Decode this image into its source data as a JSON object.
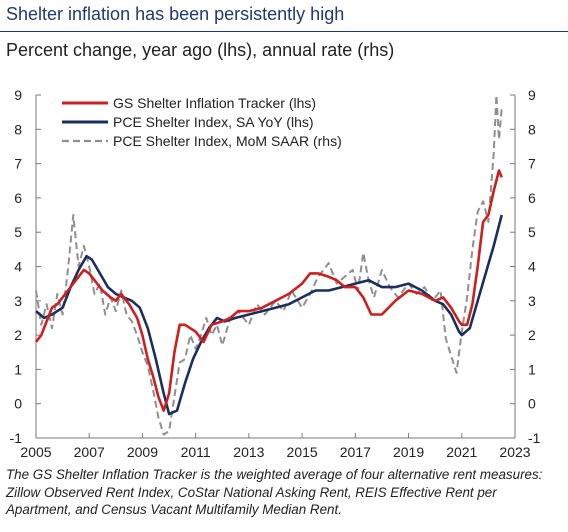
{
  "header": {
    "title": "Shelter inflation has been persistently high",
    "subtitle": "Percent change, year ago (lhs), annual rate (rhs)"
  },
  "footnote": "The GS Shelter Inflation Tracker is the weighted average of four alternative rent measures: Zillow Observed Rent Index, CoStar National Asking Rent, REIS Effective Rent per Apartment, and Census Vacant Multifamily Median Rent.",
  "colors": {
    "gs_tracker": "#cc1f1f",
    "pce_yoy": "#1b2f5e",
    "pce_mom": "#8f8f8f"
  },
  "chart_data": {
    "type": "line",
    "title": "Shelter inflation has been persistently high",
    "subtitle": "Percent change, year ago (lhs), annual rate (rhs)",
    "xlim": [
      2005,
      2023
    ],
    "ylim_left": [
      -1,
      9
    ],
    "ylim_right": [
      -1,
      9
    ],
    "x_ticks": [
      2005,
      2007,
      2009,
      2011,
      2013,
      2015,
      2017,
      2019,
      2021,
      2023
    ],
    "y_ticks_left": [
      -1,
      0,
      1,
      2,
      3,
      4,
      5,
      6,
      7,
      8,
      9
    ],
    "y_ticks_right": [
      -1,
      0,
      1,
      2,
      3,
      4,
      5,
      6,
      7,
      8,
      9
    ],
    "legend_position": "top-left",
    "grid": false,
    "series": [
      {
        "name": "GS Shelter Inflation Tracker (lhs)",
        "axis": "left",
        "style": "solid",
        "x": [
          2005.0,
          2005.2,
          2005.4,
          2005.6,
          2005.8,
          2006.0,
          2006.2,
          2006.5,
          2006.8,
          2007.0,
          2007.2,
          2007.5,
          2007.8,
          2008.0,
          2008.2,
          2008.5,
          2008.8,
          2009.0,
          2009.2,
          2009.4,
          2009.6,
          2009.8,
          2010.0,
          2010.2,
          2010.4,
          2010.6,
          2010.8,
          2011.0,
          2011.3,
          2011.6,
          2012.0,
          2012.3,
          2012.6,
          2013.0,
          2013.5,
          2014.0,
          2014.5,
          2015.0,
          2015.3,
          2015.6,
          2016.0,
          2016.3,
          2016.6,
          2017.0,
          2017.3,
          2017.6,
          2018.0,
          2018.5,
          2019.0,
          2019.5,
          2020.0,
          2020.3,
          2020.6,
          2020.9,
          2021.0,
          2021.2,
          2021.4,
          2021.6,
          2021.8,
          2022.0,
          2022.2,
          2022.4,
          2022.5
        ],
        "y": [
          1.8,
          2.0,
          2.4,
          2.8,
          2.9,
          3.1,
          3.3,
          3.6,
          3.9,
          3.8,
          3.6,
          3.3,
          3.1,
          3.0,
          3.2,
          2.9,
          2.5,
          2.0,
          1.3,
          0.8,
          0.2,
          -0.2,
          0.3,
          1.5,
          2.3,
          2.3,
          2.2,
          2.1,
          1.8,
          2.3,
          2.4,
          2.5,
          2.7,
          2.7,
          2.8,
          3.0,
          3.2,
          3.5,
          3.8,
          3.8,
          3.7,
          3.6,
          3.4,
          3.4,
          3.1,
          2.6,
          2.6,
          3.0,
          3.3,
          3.2,
          3.0,
          3.1,
          2.8,
          2.4,
          2.3,
          2.3,
          2.9,
          4.0,
          5.3,
          5.5,
          6.2,
          6.8,
          6.6
        ]
      },
      {
        "name": "PCE Shelter Index, SA YoY (lhs)",
        "axis": "left",
        "style": "solid",
        "x": [
          2005.0,
          2005.3,
          2005.6,
          2006.0,
          2006.3,
          2006.6,
          2006.9,
          2007.1,
          2007.4,
          2007.7,
          2008.0,
          2008.3,
          2008.6,
          2008.9,
          2009.2,
          2009.5,
          2009.8,
          2010.0,
          2010.3,
          2010.6,
          2010.9,
          2011.2,
          2011.5,
          2011.8,
          2012.1,
          2012.5,
          2013.0,
          2013.5,
          2014.0,
          2014.5,
          2015.0,
          2015.5,
          2016.0,
          2016.5,
          2017.0,
          2017.5,
          2018.0,
          2018.5,
          2019.0,
          2019.5,
          2020.0,
          2020.3,
          2020.6,
          2020.9,
          2021.0,
          2021.3,
          2021.6,
          2021.9,
          2022.2,
          2022.5
        ],
        "y": [
          2.7,
          2.5,
          2.6,
          2.8,
          3.4,
          3.9,
          4.3,
          4.2,
          3.8,
          3.4,
          3.2,
          3.1,
          3.0,
          2.8,
          2.2,
          1.3,
          0.3,
          -0.3,
          -0.2,
          0.6,
          1.3,
          1.8,
          2.2,
          2.5,
          2.4,
          2.5,
          2.6,
          2.7,
          2.8,
          2.9,
          3.1,
          3.3,
          3.3,
          3.4,
          3.5,
          3.6,
          3.4,
          3.4,
          3.5,
          3.3,
          3.0,
          2.9,
          2.6,
          2.1,
          2.0,
          2.2,
          3.0,
          3.8,
          4.6,
          5.5
        ]
      },
      {
        "name": "PCE Shelter Index, MoM SAAR (rhs)",
        "axis": "right",
        "style": "dashed",
        "x": [
          2005.0,
          2005.2,
          2005.4,
          2005.6,
          2005.8,
          2006.0,
          2006.2,
          2006.4,
          2006.6,
          2006.8,
          2007.0,
          2007.2,
          2007.4,
          2007.6,
          2007.8,
          2008.0,
          2008.2,
          2008.4,
          2008.6,
          2008.8,
          2009.0,
          2009.2,
          2009.4,
          2009.6,
          2009.8,
          2010.0,
          2010.2,
          2010.4,
          2010.6,
          2010.8,
          2011.0,
          2011.2,
          2011.4,
          2011.6,
          2011.8,
          2012.0,
          2012.3,
          2012.6,
          2013.0,
          2013.3,
          2013.6,
          2014.0,
          2014.3,
          2014.6,
          2015.0,
          2015.3,
          2015.6,
          2016.0,
          2016.3,
          2016.6,
          2016.9,
          2017.1,
          2017.3,
          2017.5,
          2017.7,
          2018.0,
          2018.3,
          2018.6,
          2019.0,
          2019.3,
          2019.6,
          2019.9,
          2020.2,
          2020.4,
          2020.6,
          2020.8,
          2021.0,
          2021.2,
          2021.4,
          2021.6,
          2021.8,
          2022.0,
          2022.2,
          2022.3,
          2022.4,
          2022.5
        ],
        "y": [
          3.3,
          2.3,
          2.9,
          2.2,
          3.2,
          2.6,
          3.9,
          5.5,
          4.0,
          4.6,
          4.0,
          3.2,
          3.5,
          2.6,
          3.1,
          2.7,
          3.3,
          2.6,
          2.4,
          2.0,
          1.5,
          1.1,
          0.4,
          -0.4,
          -0.9,
          -0.8,
          0.2,
          1.2,
          1.3,
          2.0,
          1.6,
          2.0,
          2.5,
          2.0,
          2.3,
          1.7,
          2.5,
          2.7,
          2.3,
          2.9,
          2.6,
          3.0,
          2.7,
          3.3,
          2.8,
          3.2,
          3.7,
          4.1,
          3.5,
          3.7,
          3.9,
          3.3,
          4.4,
          3.6,
          3.1,
          3.9,
          3.4,
          3.1,
          3.5,
          3.2,
          3.4,
          3.0,
          3.3,
          1.9,
          1.4,
          0.9,
          2.1,
          3.1,
          4.5,
          5.6,
          5.9,
          5.3,
          7.3,
          9.0,
          7.7,
          8.6
        ]
      }
    ]
  }
}
